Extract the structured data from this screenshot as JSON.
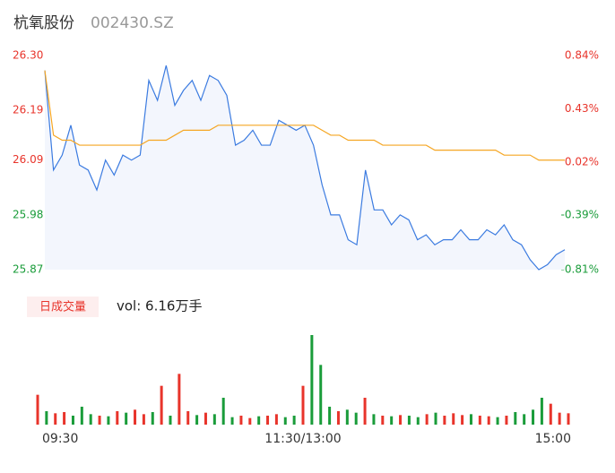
{
  "header": {
    "name": "杭氧股份",
    "code": "002430.SZ"
  },
  "chart_data": [
    {
      "type": "line",
      "series": [
        {
          "name": "price",
          "color": "#3b7be0",
          "values": [
            26.27,
            26.07,
            26.1,
            26.16,
            26.08,
            26.07,
            26.03,
            26.09,
            26.06,
            26.1,
            26.09,
            26.1,
            26.25,
            26.21,
            26.28,
            26.2,
            26.23,
            26.25,
            26.21,
            26.26,
            26.25,
            26.22,
            26.12,
            26.13,
            26.15,
            26.12,
            26.12,
            26.17,
            26.16,
            26.15,
            26.16,
            26.12,
            26.04,
            25.98,
            25.98,
            25.93,
            25.92,
            26.07,
            25.99,
            25.99,
            25.96,
            25.98,
            25.97,
            25.93,
            25.94,
            25.92,
            25.93,
            25.93,
            25.95,
            25.93,
            25.93,
            25.95,
            25.94,
            25.96,
            25.93,
            25.92,
            25.89,
            25.87,
            25.88,
            25.9,
            25.91
          ]
        },
        {
          "name": "avg",
          "color": "#f5a623",
          "values": [
            26.27,
            26.14,
            26.13,
            26.13,
            26.12,
            26.12,
            26.12,
            26.12,
            26.12,
            26.12,
            26.12,
            26.12,
            26.13,
            26.13,
            26.13,
            26.14,
            26.15,
            26.15,
            26.15,
            26.15,
            26.16,
            26.16,
            26.16,
            26.16,
            26.16,
            26.16,
            26.16,
            26.16,
            26.16,
            26.16,
            26.16,
            26.16,
            26.15,
            26.14,
            26.14,
            26.13,
            26.13,
            26.13,
            26.13,
            26.12,
            26.12,
            26.12,
            26.12,
            26.12,
            26.12,
            26.11,
            26.11,
            26.11,
            26.11,
            26.11,
            26.11,
            26.11,
            26.11,
            26.1,
            26.1,
            26.1,
            26.1,
            26.09,
            26.09,
            26.09,
            26.09
          ]
        }
      ],
      "ylim": [
        25.87,
        26.3
      ],
      "yticks": [
        {
          "value": 26.3,
          "label": "26.30"
        },
        26.19,
        26.09,
        25.98,
        25.87
      ],
      "y2lim": [
        -0.81,
        0.84
      ],
      "y2ticks": [
        {
          "value": 0.84,
          "label": "0.84%"
        },
        {
          "value": 0.43,
          "label": "0.43%"
        },
        {
          "value": 0.02,
          "label": "0.02%"
        },
        {
          "value": -0.39,
          "label": "-0.39%"
        },
        {
          "value": -0.81,
          "label": "-0.81%"
        }
      ],
      "up_color": "#e8342b",
      "down_color": "#1a9c3a",
      "flat_color": "#999999",
      "area_color": "#f3f6fd"
    },
    {
      "type": "bar",
      "button": "日成交量",
      "label": "vol: 6.16万手",
      "categories": [
        "09:30",
        null,
        null,
        null,
        null,
        null,
        null,
        null,
        null,
        null,
        null,
        null,
        null,
        null,
        null,
        null,
        null,
        null,
        null,
        null,
        null,
        null,
        null,
        null,
        null,
        null,
        null,
        null,
        null,
        null,
        "11:30/13:00",
        null,
        null,
        null,
        null,
        null,
        null,
        null,
        null,
        null,
        null,
        null,
        null,
        null,
        null,
        null,
        null,
        null,
        null,
        null,
        null,
        null,
        null,
        null,
        null,
        null,
        null,
        null,
        null,
        null,
        "15:00"
      ],
      "values": [
        1000,
        450,
        380,
        420,
        300,
        600,
        350,
        300,
        280,
        450,
        400,
        500,
        350,
        420,
        1300,
        300,
        1700,
        450,
        320,
        400,
        350,
        900,
        250,
        300,
        220,
        280,
        300,
        350,
        250,
        300,
        1300,
        3000,
        2000,
        600,
        450,
        500,
        400,
        900,
        350,
        300,
        280,
        320,
        300,
        250,
        350,
        400,
        300,
        380,
        320,
        350,
        300,
        280,
        250,
        300,
        420,
        350,
        500,
        900,
        700,
        400,
        380
      ],
      "ylim": [
        0,
        3000
      ],
      "up_color": "#e8342b",
      "down_color": "#1a9c3a"
    }
  ]
}
